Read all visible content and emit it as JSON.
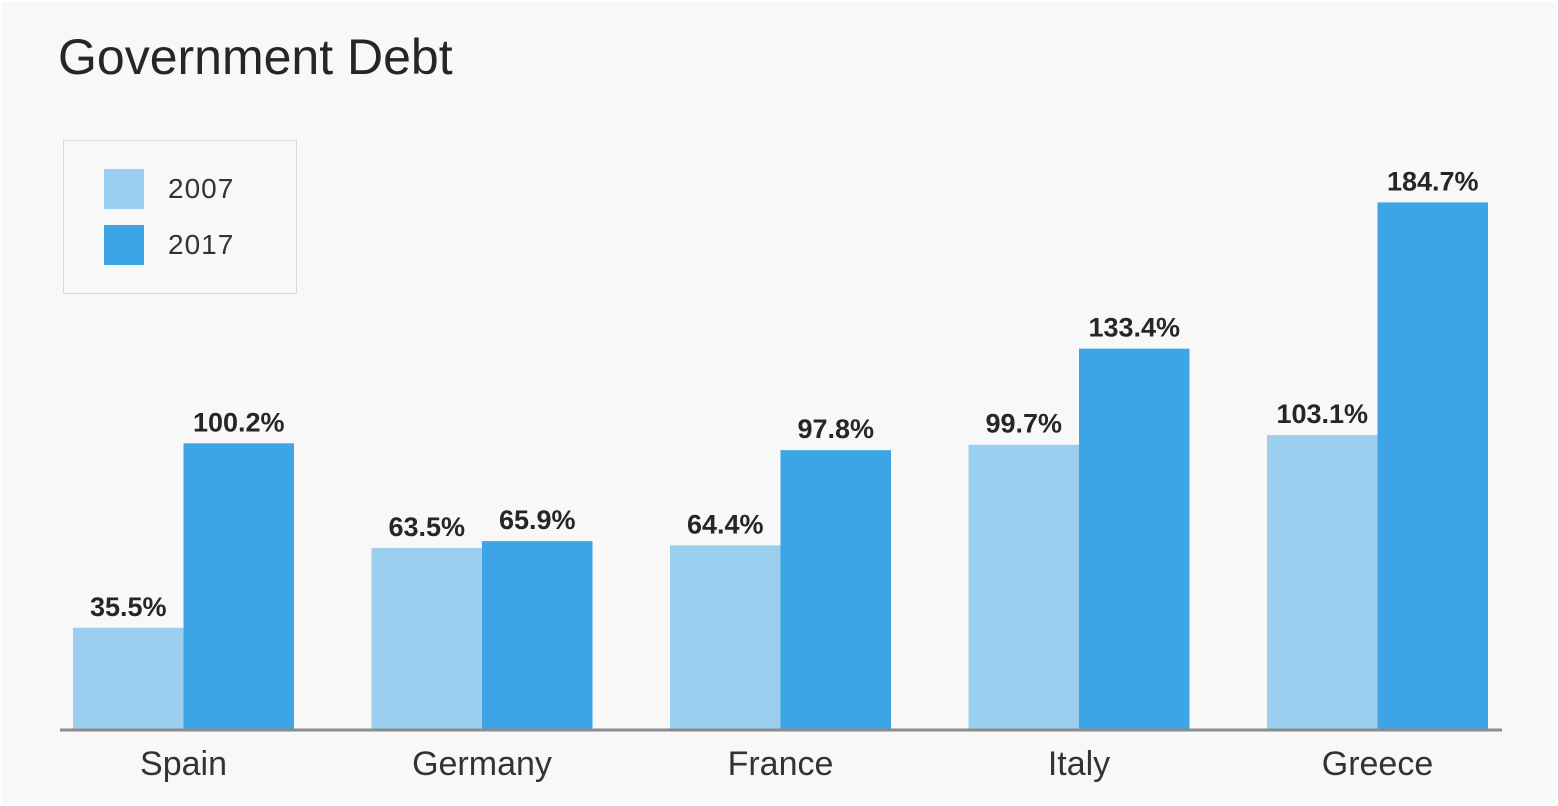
{
  "chart_data": {
    "type": "bar",
    "title": "Government Debt",
    "xlabel": "",
    "ylabel": "",
    "categories": [
      "Spain",
      "Germany",
      "France",
      "Italy",
      "Greece"
    ],
    "series": [
      {
        "name": "2007",
        "color": "#9acff0",
        "values": [
          35.5,
          63.5,
          64.4,
          99.7,
          103.1
        ],
        "labels": [
          "35.5%",
          "63.5%",
          "64.4%",
          "99.7%",
          "103.1%"
        ]
      },
      {
        "name": "2017",
        "color": "#3da5e5",
        "values": [
          100.2,
          65.9,
          97.8,
          133.4,
          184.7
        ],
        "labels": [
          "100.2%",
          "65.9%",
          "97.8%",
          "133.4%",
          "184.7%"
        ]
      }
    ],
    "ylim": [
      0,
      184.7
    ],
    "grid": false,
    "legend_position": "top-left",
    "axis_color": "#8c8c8c"
  }
}
